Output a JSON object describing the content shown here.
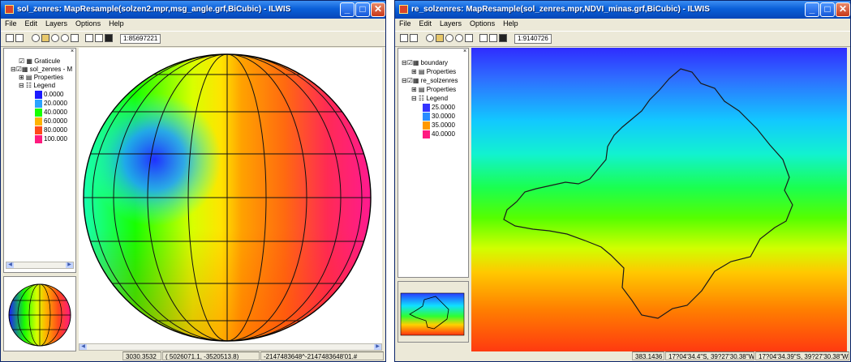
{
  "menu": [
    "File",
    "Edit",
    "Layers",
    "Options",
    "Help"
  ],
  "window_left": {
    "title": "sol_zenres: MapResample(solzen2.mpr,msg_angle.grf,BiCubic) - ILWIS",
    "scale": "1:85697221",
    "layers": {
      "graticule": "Graticule",
      "map": "sol_zenres - M",
      "properties": "Properties",
      "legend": "Legend"
    },
    "legend_items": [
      {
        "label": "0.0000",
        "color": "#1a1aff"
      },
      {
        "label": "20.0000",
        "color": "#2aa3ff"
      },
      {
        "label": "40.0000",
        "color": "#17ff00"
      },
      {
        "label": "60.0000",
        "color": "#ffb300"
      },
      {
        "label": "80.0000",
        "color": "#ff4a1a"
      },
      {
        "label": "100.000",
        "color": "#ff1a7e"
      }
    ],
    "status": [
      "3030.3532",
      "(  5026071.1,  -3520513.8)",
      "-2147483648^-2147483648'01.#"
    ]
  },
  "window_right": {
    "title": "re_solzenres: MapResample(sol_zenres.mpr,NDVI_minas.grf,BiCubic) - ILWIS",
    "scale": "1:9140726",
    "layers": {
      "boundary": "boundary",
      "properties_1": "Properties",
      "map": "re_solzenres",
      "properties_2": "Properties",
      "legend": "Legend"
    },
    "legend_items": [
      {
        "label": "25.0000",
        "color": "#3333ff"
      },
      {
        "label": "30.0000",
        "color": "#2a8cff"
      },
      {
        "label": "35.0000",
        "color": "#ff9900"
      },
      {
        "label": "40.0000",
        "color": "#ff1a80"
      }
    ],
    "status": [
      "383.1436",
      "17?04'34.4\"S, 39?27'30.38\"W",
      "17?04'34.39\"S, 39?27'30.38\"W"
    ]
  },
  "colors": {
    "titlebar": "#0a5fd8",
    "panel": "#ece9d8"
  }
}
